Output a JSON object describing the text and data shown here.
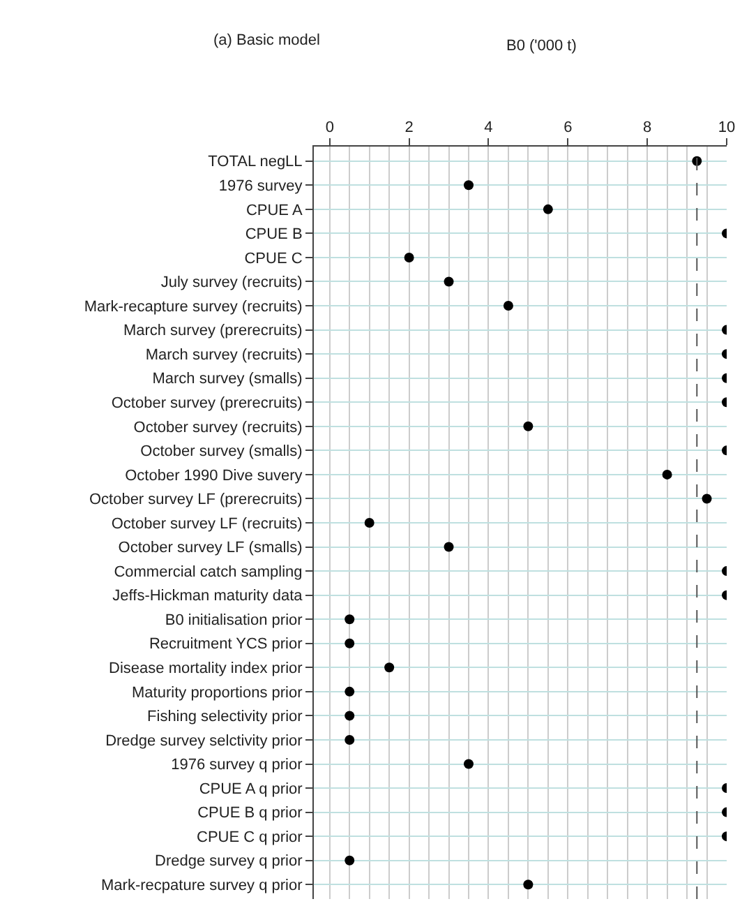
{
  "chart_data": {
    "type": "scatter",
    "orientation": "horizontal",
    "title": "(a) Basic model",
    "xlabel": "B0 ('000 t)",
    "categories": [
      "TOTAL negLL",
      "1976 survey",
      "CPUE A",
      "CPUE B",
      "CPUE C",
      "July survey (recruits)",
      "Mark-recapture survey (recruits)",
      "March survey (prerecruits)",
      "March survey (recruits)",
      "March survey (smalls)",
      "October survey (prerecruits)",
      "October survey (recruits)",
      "October survey (smalls)",
      "October 1990 Dive suvery",
      "October survey LF (prerecruits)",
      "October survey LF (recruits)",
      "October survey LF (smalls)",
      "Commercial catch sampling",
      "Jeffs-Hickman maturity data",
      "B0 initialisation prior",
      "Recruitment YCS prior",
      "Disease mortality index prior",
      "Maturity proportions prior",
      "Fishing selectivity prior",
      "Dredge survey selctivity prior",
      "1976 survey q prior",
      "CPUE A q prior",
      "CPUE B q prior",
      "CPUE C q prior",
      "Dredge survey q prior",
      "Mark-recpature survey q prior"
    ],
    "series": [
      {
        "color": "#000000",
        "values": [
          9.25,
          3.5,
          5.5,
          10,
          2,
          3,
          4.5,
          10,
          10,
          10,
          10,
          5,
          10,
          8.5,
          9.5,
          1,
          3,
          10,
          10,
          0.5,
          0.5,
          1.5,
          0.5,
          0.5,
          0.5,
          3.5,
          10,
          10,
          10,
          0.5,
          5
        ]
      }
    ],
    "xlim": [
      -0.4,
      10
    ],
    "xticks": [
      0,
      2,
      4,
      6,
      8,
      10
    ],
    "grid": true,
    "marker": "circle",
    "ref_lines": [
      {
        "axis": "x",
        "value": 9.25,
        "color": "#555555",
        "line_style": "dashed"
      }
    ]
  }
}
